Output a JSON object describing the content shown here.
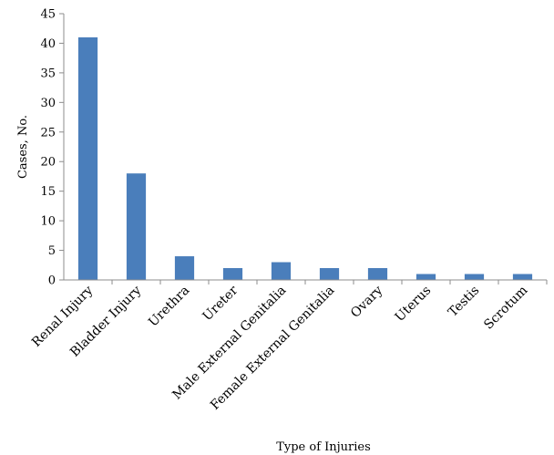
{
  "chart_data": {
    "type": "bar",
    "title": "",
    "xlabel": "Type of Injuries",
    "ylabel": "Cases, No.",
    "ylim": [
      0,
      45
    ],
    "yticks": [
      0,
      5,
      10,
      15,
      20,
      25,
      30,
      35,
      40,
      45
    ],
    "grid": false,
    "legend": "none",
    "bar_color": "#4a7ebb",
    "categories": [
      "Renal Injury",
      "Bladder Injury",
      "Urethra",
      "Ureter",
      "Male External Genitalia",
      "Female External Genitalia",
      "Ovary",
      "Uterus",
      "Testis",
      "Scrotum"
    ],
    "values": [
      41,
      18,
      4,
      2,
      3,
      2,
      2,
      1,
      1,
      1
    ]
  }
}
